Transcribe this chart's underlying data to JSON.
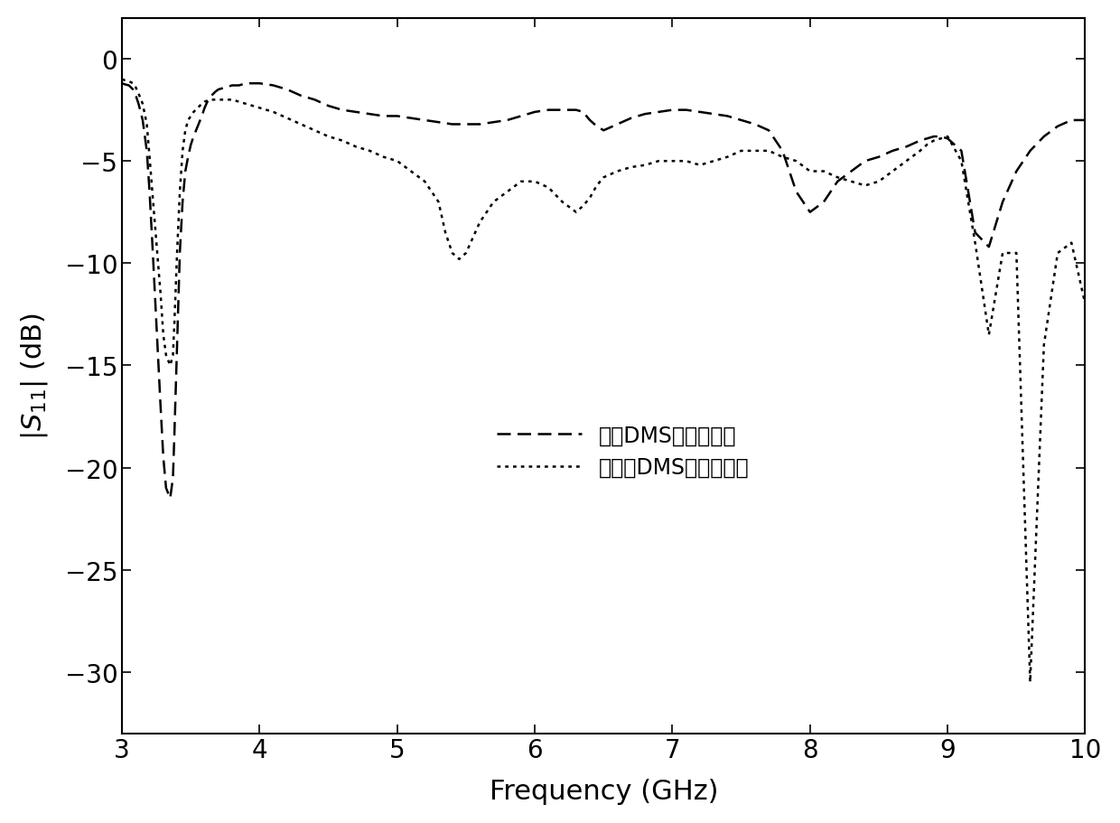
{
  "xlabel": "Frequency (GHz)",
  "xlim": [
    3,
    10
  ],
  "ylim": [
    -33,
    2
  ],
  "yticks": [
    0,
    -5,
    -10,
    -15,
    -20,
    -25,
    -30
  ],
  "xticks": [
    3,
    4,
    5,
    6,
    7,
    8,
    9,
    10
  ],
  "legend1": "加载DMS结构的天线",
  "legend2": "未加载DMS结构的天线",
  "line_color": "#000000",
  "background_color": "#ffffff",
  "dms_x": [
    3.0,
    3.02,
    3.05,
    3.08,
    3.1,
    3.12,
    3.15,
    3.18,
    3.2,
    3.22,
    3.25,
    3.28,
    3.3,
    3.32,
    3.35,
    3.37,
    3.38,
    3.4,
    3.42,
    3.44,
    3.46,
    3.48,
    3.5,
    3.52,
    3.55,
    3.58,
    3.6,
    3.62,
    3.65,
    3.68,
    3.7,
    3.75,
    3.8,
    3.85,
    3.9,
    3.95,
    4.0,
    4.1,
    4.2,
    4.3,
    4.4,
    4.5,
    4.6,
    4.7,
    4.8,
    4.9,
    5.0,
    5.1,
    5.2,
    5.3,
    5.4,
    5.5,
    5.6,
    5.7,
    5.8,
    5.9,
    6.0,
    6.1,
    6.2,
    6.3,
    6.35,
    6.4,
    6.45,
    6.5,
    6.6,
    6.7,
    6.8,
    6.9,
    7.0,
    7.1,
    7.2,
    7.3,
    7.4,
    7.5,
    7.6,
    7.7,
    7.8,
    7.9,
    8.0,
    8.1,
    8.2,
    8.3,
    8.4,
    8.5,
    8.6,
    8.7,
    8.8,
    8.9,
    8.92,
    8.95,
    9.0,
    9.1,
    9.2,
    9.3,
    9.4,
    9.5,
    9.6,
    9.7,
    9.8,
    9.9,
    10.0
  ],
  "dms_y": [
    -1.2,
    -1.25,
    -1.3,
    -1.5,
    -1.8,
    -2.2,
    -3.0,
    -4.5,
    -6.5,
    -9.0,
    -13.0,
    -17.0,
    -19.5,
    -21.0,
    -21.5,
    -20.5,
    -18.5,
    -14.0,
    -9.5,
    -7.0,
    -5.5,
    -4.8,
    -4.2,
    -3.8,
    -3.3,
    -2.8,
    -2.4,
    -2.1,
    -1.8,
    -1.6,
    -1.5,
    -1.4,
    -1.3,
    -1.3,
    -1.2,
    -1.2,
    -1.2,
    -1.3,
    -1.5,
    -1.8,
    -2.0,
    -2.3,
    -2.5,
    -2.6,
    -2.7,
    -2.8,
    -2.8,
    -2.9,
    -3.0,
    -3.1,
    -3.2,
    -3.2,
    -3.2,
    -3.1,
    -3.0,
    -2.8,
    -2.6,
    -2.5,
    -2.5,
    -2.5,
    -2.6,
    -3.0,
    -3.3,
    -3.5,
    -3.2,
    -2.9,
    -2.7,
    -2.6,
    -2.5,
    -2.5,
    -2.6,
    -2.7,
    -2.8,
    -3.0,
    -3.2,
    -3.5,
    -4.5,
    -6.5,
    -7.5,
    -7.0,
    -6.0,
    -5.5,
    -5.0,
    -4.8,
    -4.5,
    -4.3,
    -4.0,
    -3.8,
    -3.8,
    -3.8,
    -3.9,
    -4.5,
    -8.5,
    -9.2,
    -7.0,
    -5.5,
    -4.5,
    -3.8,
    -3.3,
    -3.0,
    -3.0
  ],
  "nodms_x": [
    3.0,
    3.02,
    3.05,
    3.08,
    3.1,
    3.12,
    3.15,
    3.18,
    3.2,
    3.22,
    3.25,
    3.28,
    3.3,
    3.32,
    3.35,
    3.37,
    3.38,
    3.4,
    3.42,
    3.44,
    3.46,
    3.48,
    3.5,
    3.52,
    3.55,
    3.58,
    3.6,
    3.62,
    3.65,
    3.68,
    3.7,
    3.75,
    3.8,
    3.85,
    3.9,
    3.95,
    4.0,
    4.1,
    4.2,
    4.3,
    4.4,
    4.5,
    4.6,
    4.7,
    4.8,
    4.9,
    5.0,
    5.1,
    5.2,
    5.3,
    5.35,
    5.4,
    5.45,
    5.5,
    5.6,
    5.7,
    5.8,
    5.9,
    6.0,
    6.1,
    6.2,
    6.3,
    6.35,
    6.4,
    6.45,
    6.5,
    6.6,
    6.7,
    6.8,
    6.9,
    7.0,
    7.1,
    7.2,
    7.3,
    7.4,
    7.5,
    7.6,
    7.7,
    7.8,
    7.9,
    8.0,
    8.1,
    8.2,
    8.3,
    8.4,
    8.5,
    8.6,
    8.7,
    8.8,
    8.85,
    8.9,
    8.95,
    9.0,
    9.1,
    9.2,
    9.3,
    9.4,
    9.5,
    9.6,
    9.7,
    9.8,
    9.9,
    10.0
  ],
  "nodms_y": [
    -1.0,
    -1.05,
    -1.1,
    -1.2,
    -1.4,
    -1.7,
    -2.2,
    -3.2,
    -4.8,
    -6.5,
    -9.0,
    -11.5,
    -13.5,
    -14.5,
    -15.0,
    -14.5,
    -13.0,
    -9.5,
    -6.5,
    -4.5,
    -3.5,
    -3.0,
    -2.8,
    -2.6,
    -2.4,
    -2.2,
    -2.1,
    -2.05,
    -2.0,
    -2.0,
    -2.0,
    -2.0,
    -2.0,
    -2.1,
    -2.2,
    -2.3,
    -2.4,
    -2.6,
    -2.9,
    -3.2,
    -3.5,
    -3.8,
    -4.0,
    -4.3,
    -4.5,
    -4.8,
    -5.0,
    -5.5,
    -6.0,
    -7.0,
    -8.5,
    -9.5,
    -9.8,
    -9.5,
    -8.0,
    -7.0,
    -6.5,
    -6.0,
    -6.0,
    -6.3,
    -7.0,
    -7.5,
    -7.2,
    -6.8,
    -6.2,
    -5.8,
    -5.5,
    -5.3,
    -5.2,
    -5.0,
    -5.0,
    -5.0,
    -5.2,
    -5.0,
    -4.8,
    -4.5,
    -4.5,
    -4.5,
    -4.8,
    -5.0,
    -5.5,
    -5.5,
    -5.8,
    -6.0,
    -6.2,
    -6.0,
    -5.5,
    -5.0,
    -4.5,
    -4.2,
    -4.0,
    -3.9,
    -3.8,
    -5.0,
    -9.0,
    -13.5,
    -9.5,
    -9.5,
    -30.5,
    -14.0,
    -9.5,
    -9.0,
    -12.0
  ]
}
